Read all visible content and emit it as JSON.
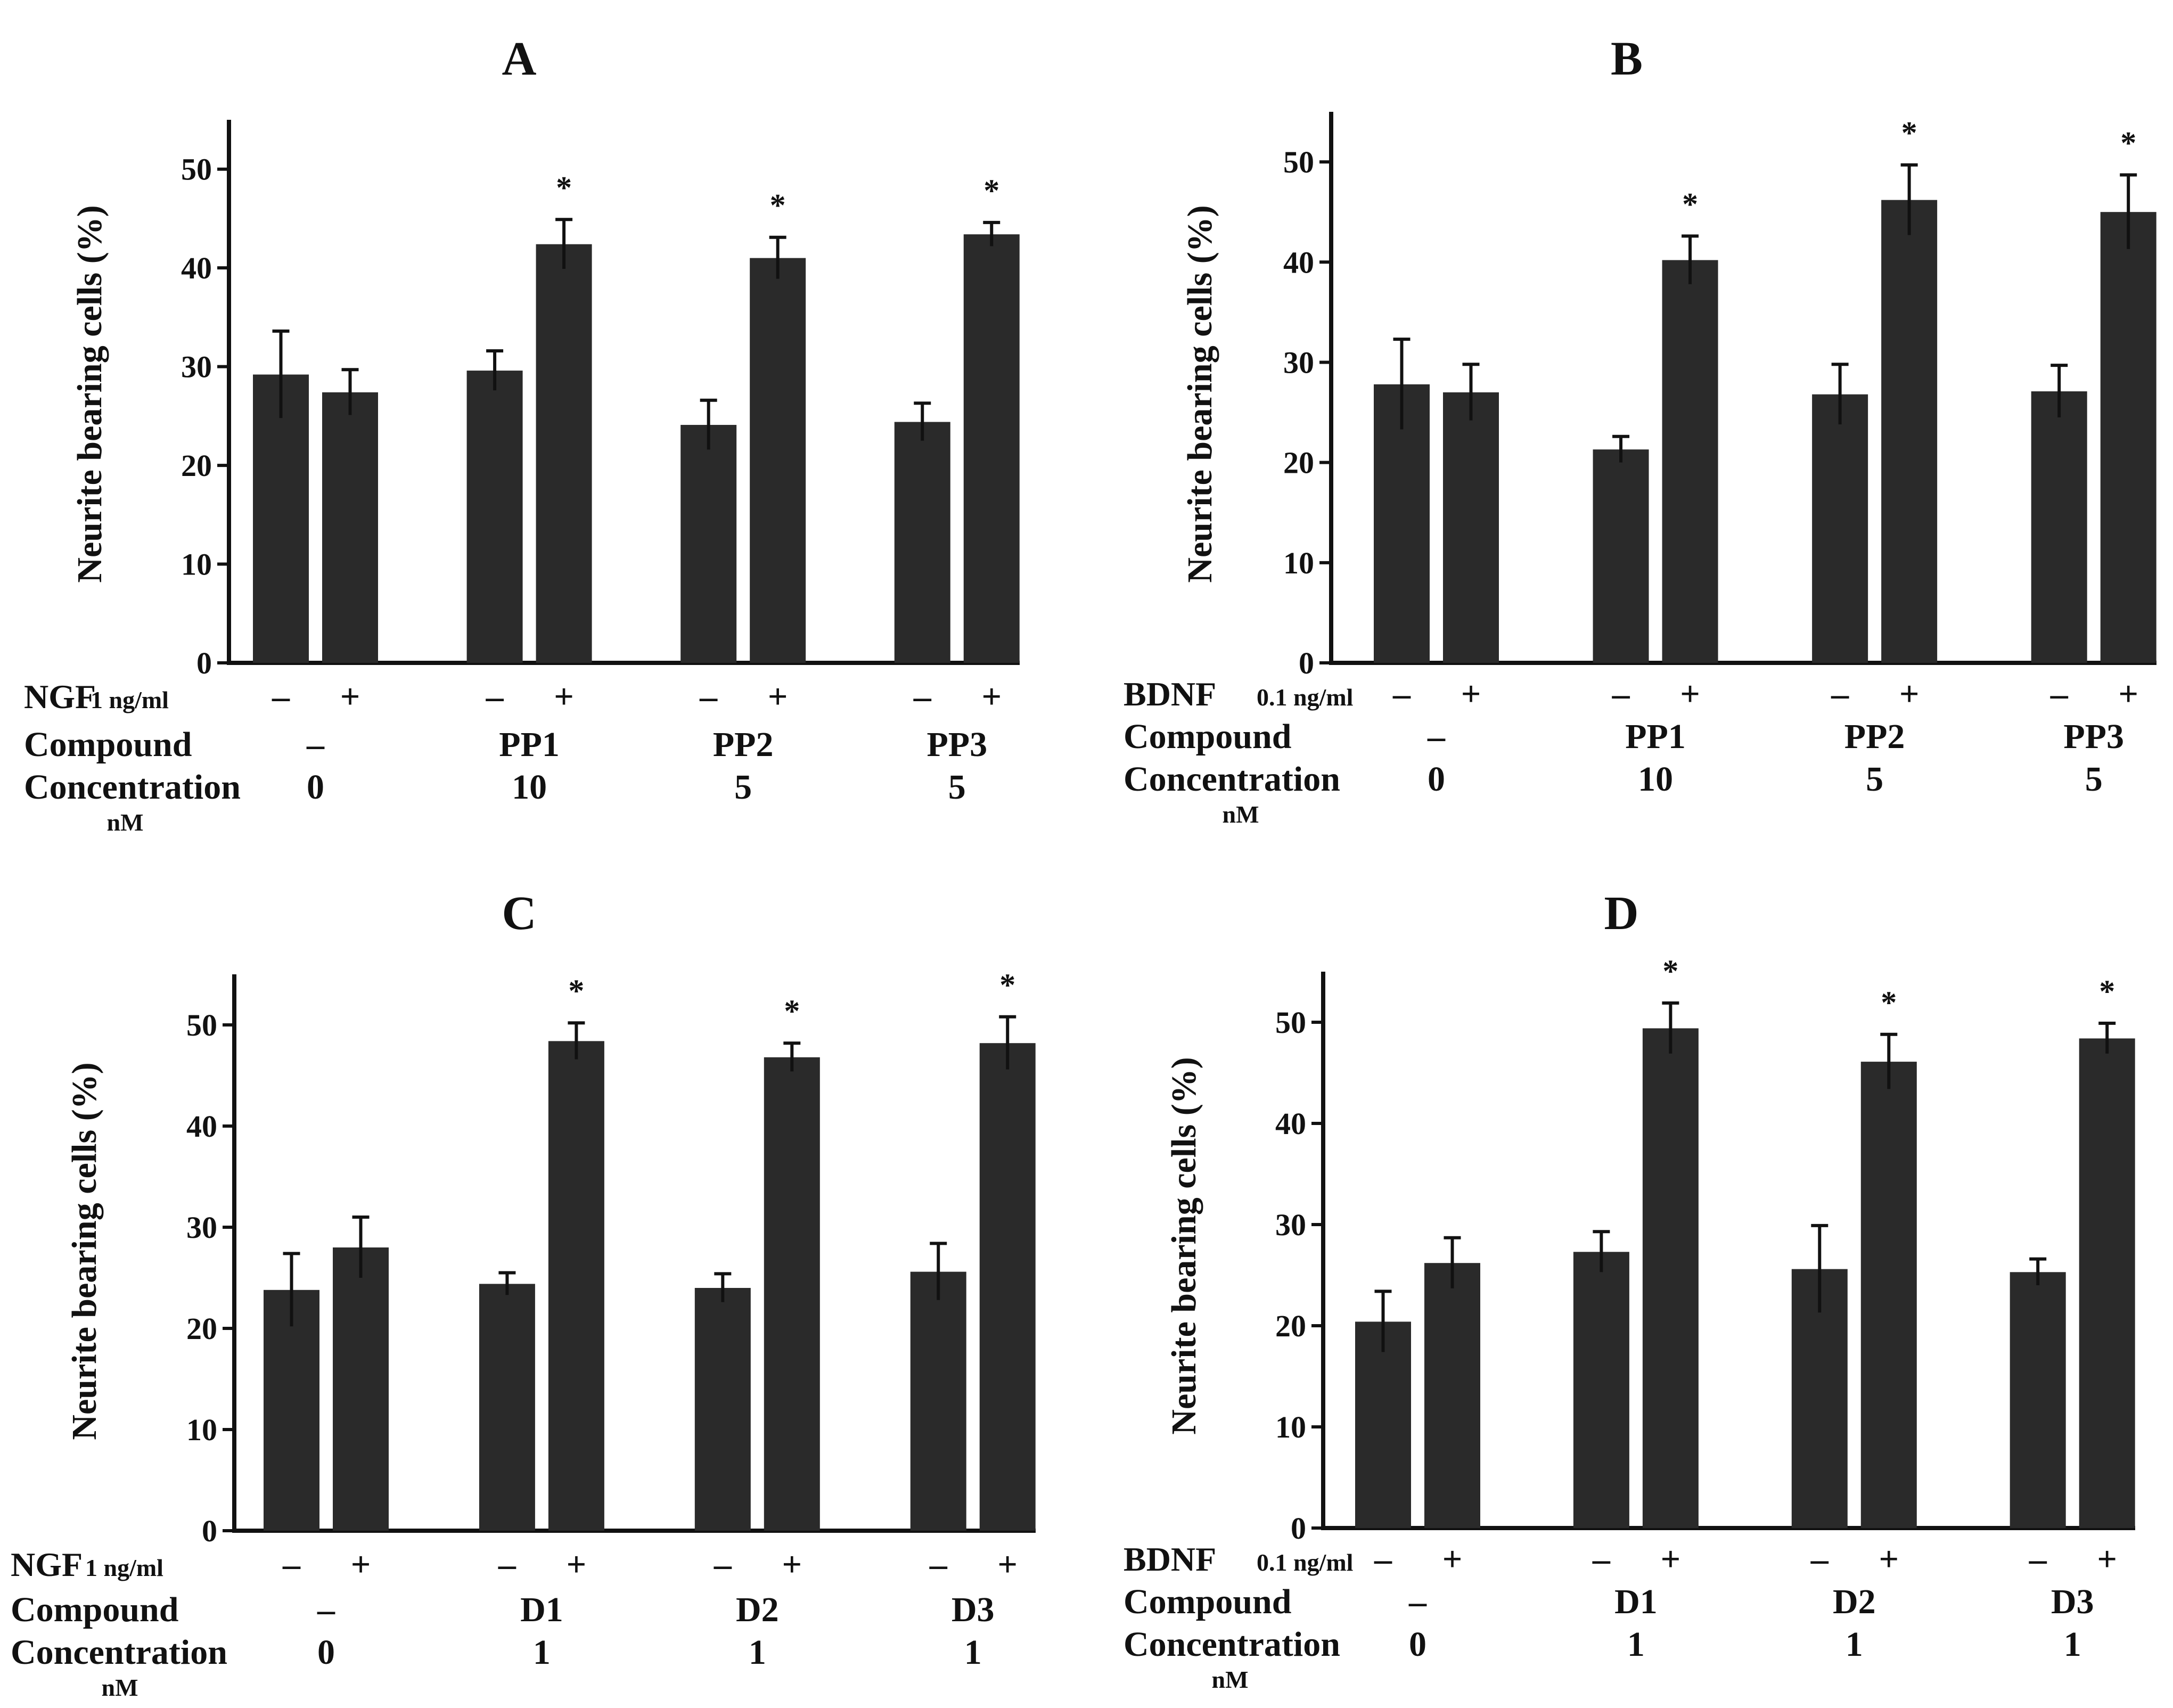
{
  "figure": {
    "background": "#ffffff",
    "bar_color": "#2a2a2a",
    "ink_color": "#111111",
    "significance_marker": "*",
    "row_labels": {
      "compound": "Compound",
      "concentration": "Concentration",
      "concentration_unit": "nM"
    }
  },
  "chart_data": [
    {
      "panel": "A",
      "type": "bar",
      "title": "A",
      "ylabel": "Neurite bearing cells  (%)",
      "xlabel": "",
      "ylim": [
        0,
        55
      ],
      "yticks": [
        0,
        10,
        20,
        30,
        40,
        50
      ],
      "grid": false,
      "treatment_label": "NGF",
      "treatment_dose": "1 ng/ml",
      "groups": [
        {
          "compound": "–",
          "concentration": "0",
          "bars": [
            {
              "sign": "–",
              "value": 29.2,
              "error": 4.4,
              "significant": false
            },
            {
              "sign": "+",
              "value": 27.4,
              "error": 2.3,
              "significant": false
            }
          ]
        },
        {
          "compound": "PP1",
          "concentration": "10",
          "bars": [
            {
              "sign": "–",
              "value": 29.6,
              "error": 2.0,
              "significant": false
            },
            {
              "sign": "+",
              "value": 42.4,
              "error": 2.5,
              "significant": true
            }
          ]
        },
        {
          "compound": "PP2",
          "concentration": "5",
          "bars": [
            {
              "sign": "–",
              "value": 24.1,
              "error": 2.5,
              "significant": false
            },
            {
              "sign": "+",
              "value": 41.0,
              "error": 2.1,
              "significant": true
            }
          ]
        },
        {
          "compound": "PP3",
          "concentration": "5",
          "bars": [
            {
              "sign": "–",
              "value": 24.4,
              "error": 1.9,
              "significant": false
            },
            {
              "sign": "+",
              "value": 43.4,
              "error": 1.2,
              "significant": true
            }
          ]
        }
      ]
    },
    {
      "panel": "B",
      "type": "bar",
      "title": "B",
      "ylabel": "Neurite bearing cells  (%)",
      "xlabel": "",
      "ylim": [
        0,
        55
      ],
      "yticks": [
        0,
        10,
        20,
        30,
        40,
        50
      ],
      "grid": false,
      "treatment_label": "BDNF",
      "treatment_dose": "0.1 ng/ml",
      "groups": [
        {
          "compound": "–",
          "concentration": "0",
          "bars": [
            {
              "sign": "–",
              "value": 27.8,
              "error": 4.5,
              "significant": false
            },
            {
              "sign": "+",
              "value": 27.0,
              "error": 2.8,
              "significant": false
            }
          ]
        },
        {
          "compound": "PP1",
          "concentration": "10",
          "bars": [
            {
              "sign": "–",
              "value": 21.3,
              "error": 1.3,
              "significant": false
            },
            {
              "sign": "+",
              "value": 40.2,
              "error": 2.4,
              "significant": true
            }
          ]
        },
        {
          "compound": "PP2",
          "concentration": "5",
          "bars": [
            {
              "sign": "–",
              "value": 26.8,
              "error": 3.0,
              "significant": false
            },
            {
              "sign": "+",
              "value": 46.2,
              "error": 3.5,
              "significant": true
            }
          ]
        },
        {
          "compound": "PP3",
          "concentration": "5",
          "bars": [
            {
              "sign": "–",
              "value": 27.1,
              "error": 2.6,
              "significant": false
            },
            {
              "sign": "+",
              "value": 45.0,
              "error": 3.7,
              "significant": true
            }
          ]
        }
      ]
    },
    {
      "panel": "C",
      "type": "bar",
      "title": "C",
      "ylabel": "Neurite bearing cells  (%)",
      "xlabel": "",
      "ylim": [
        0,
        55
      ],
      "yticks": [
        0,
        10,
        20,
        30,
        40,
        50
      ],
      "grid": false,
      "treatment_label": "NGF",
      "treatment_dose": "1 ng/ml",
      "groups": [
        {
          "compound": "–",
          "concentration": "0",
          "bars": [
            {
              "sign": "–",
              "value": 23.8,
              "error": 3.6,
              "significant": false
            },
            {
              "sign": "+",
              "value": 28.0,
              "error": 3.0,
              "significant": false
            }
          ]
        },
        {
          "compound": "D1",
          "concentration": "1",
          "bars": [
            {
              "sign": "–",
              "value": 24.4,
              "error": 1.1,
              "significant": false
            },
            {
              "sign": "+",
              "value": 48.4,
              "error": 1.8,
              "significant": true
            }
          ]
        },
        {
          "compound": "D2",
          "concentration": "1",
          "bars": [
            {
              "sign": "–",
              "value": 24.0,
              "error": 1.4,
              "significant": false
            },
            {
              "sign": "+",
              "value": 46.8,
              "error": 1.4,
              "significant": true
            }
          ]
        },
        {
          "compound": "D3",
          "concentration": "1",
          "bars": [
            {
              "sign": "–",
              "value": 25.6,
              "error": 2.8,
              "significant": false
            },
            {
              "sign": "+",
              "value": 48.2,
              "error": 2.6,
              "significant": true
            }
          ]
        }
      ]
    },
    {
      "panel": "D",
      "type": "bar",
      "title": "D",
      "ylabel": "Neurite bearing cells  (%)",
      "xlabel": "",
      "ylim": [
        0,
        55
      ],
      "yticks": [
        0,
        10,
        20,
        30,
        40,
        50
      ],
      "grid": false,
      "treatment_label": "BDNF",
      "treatment_dose": "0.1 ng/ml",
      "groups": [
        {
          "compound": "–",
          "concentration": "0",
          "bars": [
            {
              "sign": "–",
              "value": 20.4,
              "error": 3.0,
              "significant": false
            },
            {
              "sign": "+",
              "value": 26.2,
              "error": 2.5,
              "significant": false
            }
          ]
        },
        {
          "compound": "D1",
          "concentration": "1",
          "bars": [
            {
              "sign": "–",
              "value": 27.3,
              "error": 2.0,
              "significant": false
            },
            {
              "sign": "+",
              "value": 49.4,
              "error": 2.5,
              "significant": true
            }
          ]
        },
        {
          "compound": "D2",
          "concentration": "1",
          "bars": [
            {
              "sign": "–",
              "value": 25.6,
              "error": 4.3,
              "significant": false
            },
            {
              "sign": "+",
              "value": 46.1,
              "error": 2.7,
              "significant": true
            }
          ]
        },
        {
          "compound": "D3",
          "concentration": "1",
          "bars": [
            {
              "sign": "–",
              "value": 25.3,
              "error": 1.3,
              "significant": false
            },
            {
              "sign": "+",
              "value": 48.4,
              "error": 1.5,
              "significant": true
            }
          ]
        }
      ]
    }
  ]
}
